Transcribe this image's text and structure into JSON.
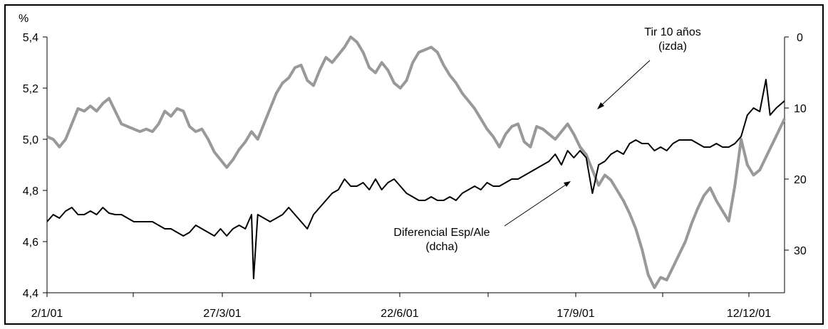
{
  "chart_data": {
    "type": "line",
    "title": "",
    "xlabel": "",
    "ylabel": "%",
    "ylim_left": [
      4.4,
      5.4
    ],
    "ylim_right_inverted": [
      0,
      36
    ],
    "grid": false,
    "legend": "annotations",
    "x_tick_labels": [
      "2/1/01",
      "27/3/01",
      "22/6/01",
      "17/9/01",
      "12/12/01"
    ],
    "y_left_tick_labels": [
      "5,4",
      "5,2",
      "5,0",
      "4,8",
      "4,6",
      "4,4"
    ],
    "y_left_tick_values": [
      5.4,
      5.2,
      5.0,
      4.8,
      4.6,
      4.4
    ],
    "y_right_tick_labels": [
      "0",
      "10",
      "20",
      "30"
    ],
    "y_right_tick_values": [
      0,
      10,
      20,
      30
    ],
    "annotations": {
      "tir_line1": "Tir 10 años",
      "tir_line2": "(izda)",
      "dif_line1": "Diferencial Esp/Ale",
      "dif_line2": "(dcha)"
    },
    "series": [
      {
        "color": "#999999",
        "axis": "left",
        "points": [
          [
            0,
            5.01
          ],
          [
            3,
            5.0
          ],
          [
            6,
            4.97
          ],
          [
            9,
            5.0
          ],
          [
            12,
            5.06
          ],
          [
            15,
            5.12
          ],
          [
            18,
            5.11
          ],
          [
            21,
            5.13
          ],
          [
            24,
            5.11
          ],
          [
            27,
            5.14
          ],
          [
            30,
            5.16
          ],
          [
            33,
            5.11
          ],
          [
            36,
            5.06
          ],
          [
            39,
            5.05
          ],
          [
            42,
            5.04
          ],
          [
            45,
            5.03
          ],
          [
            48,
            5.04
          ],
          [
            51,
            5.03
          ],
          [
            54,
            5.06
          ],
          [
            57,
            5.11
          ],
          [
            60,
            5.09
          ],
          [
            63,
            5.12
          ],
          [
            66,
            5.11
          ],
          [
            69,
            5.05
          ],
          [
            72,
            5.03
          ],
          [
            75,
            5.04
          ],
          [
            78,
            5.0
          ],
          [
            81,
            4.95
          ],
          [
            84,
            4.92
          ],
          [
            87,
            4.89
          ],
          [
            90,
            4.92
          ],
          [
            93,
            4.96
          ],
          [
            96,
            4.99
          ],
          [
            99,
            5.03
          ],
          [
            102,
            5.0
          ],
          [
            105,
            5.06
          ],
          [
            108,
            5.12
          ],
          [
            111,
            5.18
          ],
          [
            114,
            5.22
          ],
          [
            117,
            5.24
          ],
          [
            120,
            5.28
          ],
          [
            123,
            5.29
          ],
          [
            126,
            5.23
          ],
          [
            129,
            5.21
          ],
          [
            132,
            5.27
          ],
          [
            135,
            5.32
          ],
          [
            138,
            5.3
          ],
          [
            141,
            5.33
          ],
          [
            144,
            5.36
          ],
          [
            147,
            5.4
          ],
          [
            150,
            5.38
          ],
          [
            153,
            5.34
          ],
          [
            156,
            5.28
          ],
          [
            159,
            5.26
          ],
          [
            162,
            5.3
          ],
          [
            165,
            5.27
          ],
          [
            168,
            5.22
          ],
          [
            171,
            5.2
          ],
          [
            174,
            5.23
          ],
          [
            177,
            5.3
          ],
          [
            180,
            5.34
          ],
          [
            183,
            5.35
          ],
          [
            186,
            5.36
          ],
          [
            189,
            5.34
          ],
          [
            192,
            5.29
          ],
          [
            195,
            5.25
          ],
          [
            198,
            5.22
          ],
          [
            201,
            5.18
          ],
          [
            204,
            5.15
          ],
          [
            207,
            5.12
          ],
          [
            210,
            5.08
          ],
          [
            213,
            5.04
          ],
          [
            216,
            5.01
          ],
          [
            219,
            4.97
          ],
          [
            222,
            5.02
          ],
          [
            225,
            5.05
          ],
          [
            228,
            5.06
          ],
          [
            231,
            4.99
          ],
          [
            234,
            4.97
          ],
          [
            237,
            5.05
          ],
          [
            240,
            5.04
          ],
          [
            243,
            5.02
          ],
          [
            246,
            5.0
          ],
          [
            249,
            5.03
          ],
          [
            252,
            5.06
          ],
          [
            255,
            5.02
          ],
          [
            258,
            4.97
          ],
          [
            261,
            4.94
          ],
          [
            264,
            4.88
          ],
          [
            267,
            4.82
          ],
          [
            270,
            4.86
          ],
          [
            273,
            4.84
          ],
          [
            276,
            4.8
          ],
          [
            279,
            4.76
          ],
          [
            282,
            4.71
          ],
          [
            285,
            4.65
          ],
          [
            288,
            4.57
          ],
          [
            291,
            4.47
          ],
          [
            294,
            4.42
          ],
          [
            297,
            4.46
          ],
          [
            300,
            4.45
          ],
          [
            303,
            4.5
          ],
          [
            306,
            4.55
          ],
          [
            309,
            4.6
          ],
          [
            312,
            4.67
          ],
          [
            315,
            4.73
          ],
          [
            318,
            4.78
          ],
          [
            321,
            4.81
          ],
          [
            324,
            4.76
          ],
          [
            327,
            4.72
          ],
          [
            330,
            4.68
          ],
          [
            333,
            4.82
          ],
          [
            336,
            5.0
          ],
          [
            339,
            4.9
          ],
          [
            342,
            4.86
          ],
          [
            345,
            4.88
          ],
          [
            348,
            4.93
          ],
          [
            351,
            4.98
          ],
          [
            354,
            5.03
          ],
          [
            357,
            5.08
          ]
        ]
      },
      {
        "color": "#000000",
        "axis": "right",
        "points": [
          [
            0,
            26
          ],
          [
            3,
            25
          ],
          [
            6,
            25.5
          ],
          [
            9,
            24.5
          ],
          [
            12,
            24
          ],
          [
            15,
            25
          ],
          [
            18,
            25
          ],
          [
            21,
            24.5
          ],
          [
            24,
            25
          ],
          [
            27,
            24
          ],
          [
            30,
            24.8
          ],
          [
            33,
            25
          ],
          [
            36,
            25
          ],
          [
            39,
            25.5
          ],
          [
            42,
            26
          ],
          [
            45,
            26
          ],
          [
            48,
            26
          ],
          [
            51,
            26
          ],
          [
            54,
            26.5
          ],
          [
            57,
            27
          ],
          [
            60,
            27
          ],
          [
            63,
            27.5
          ],
          [
            66,
            28
          ],
          [
            69,
            27.5
          ],
          [
            72,
            26.5
          ],
          [
            75,
            27
          ],
          [
            78,
            27.5
          ],
          [
            81,
            28
          ],
          [
            84,
            27
          ],
          [
            87,
            28
          ],
          [
            90,
            27
          ],
          [
            93,
            26.5
          ],
          [
            96,
            27
          ],
          [
            99,
            25
          ],
          [
            100,
            34
          ],
          [
            102,
            25
          ],
          [
            105,
            25.5
          ],
          [
            108,
            26
          ],
          [
            111,
            25.5
          ],
          [
            114,
            25
          ],
          [
            117,
            24
          ],
          [
            120,
            25
          ],
          [
            123,
            26
          ],
          [
            126,
            27
          ],
          [
            129,
            25
          ],
          [
            132,
            24
          ],
          [
            135,
            23
          ],
          [
            138,
            22
          ],
          [
            141,
            21.5
          ],
          [
            144,
            20
          ],
          [
            147,
            21
          ],
          [
            150,
            21
          ],
          [
            153,
            20.5
          ],
          [
            156,
            21.5
          ],
          [
            159,
            20
          ],
          [
            162,
            21.5
          ],
          [
            165,
            20.5
          ],
          [
            168,
            20
          ],
          [
            171,
            21
          ],
          [
            174,
            22
          ],
          [
            177,
            22.5
          ],
          [
            180,
            23
          ],
          [
            183,
            23
          ],
          [
            186,
            22.5
          ],
          [
            189,
            23
          ],
          [
            192,
            23
          ],
          [
            195,
            22.5
          ],
          [
            198,
            23
          ],
          [
            201,
            22
          ],
          [
            204,
            21.5
          ],
          [
            207,
            21
          ],
          [
            210,
            21.5
          ],
          [
            213,
            20.5
          ],
          [
            216,
            21
          ],
          [
            219,
            21
          ],
          [
            222,
            20.5
          ],
          [
            225,
            20
          ],
          [
            228,
            20
          ],
          [
            231,
            19.5
          ],
          [
            234,
            19
          ],
          [
            237,
            18.5
          ],
          [
            240,
            18
          ],
          [
            243,
            17.5
          ],
          [
            246,
            16.5
          ],
          [
            249,
            18
          ],
          [
            252,
            16
          ],
          [
            255,
            17
          ],
          [
            258,
            16
          ],
          [
            261,
            17
          ],
          [
            264,
            22
          ],
          [
            267,
            18
          ],
          [
            270,
            17.5
          ],
          [
            273,
            16.5
          ],
          [
            276,
            16
          ],
          [
            279,
            16.5
          ],
          [
            282,
            15
          ],
          [
            285,
            14.5
          ],
          [
            288,
            15
          ],
          [
            291,
            15
          ],
          [
            294,
            16
          ],
          [
            297,
            15.5
          ],
          [
            300,
            16
          ],
          [
            303,
            15
          ],
          [
            306,
            14.5
          ],
          [
            309,
            14.5
          ],
          [
            312,
            14.5
          ],
          [
            315,
            15
          ],
          [
            318,
            15.5
          ],
          [
            321,
            15.5
          ],
          [
            324,
            15
          ],
          [
            327,
            15.5
          ],
          [
            330,
            15.5
          ],
          [
            333,
            15
          ],
          [
            336,
            14
          ],
          [
            339,
            11
          ],
          [
            342,
            10
          ],
          [
            345,
            10.5
          ],
          [
            348,
            6
          ],
          [
            350,
            11
          ],
          [
            353,
            10
          ],
          [
            357,
            9
          ]
        ]
      }
    ]
  }
}
